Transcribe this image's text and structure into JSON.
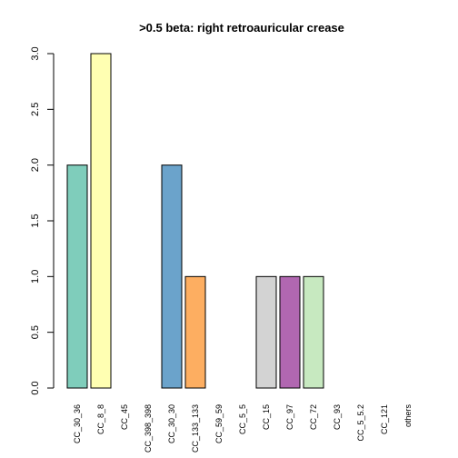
{
  "chart_data": {
    "type": "bar",
    "title": ">0.5 beta:  right retroauricular crease",
    "xlabel": "",
    "ylabel": "",
    "ylim": [
      0,
      3
    ],
    "yticks": [
      "0.0",
      "0.5",
      "1.0",
      "1.5",
      "2.0",
      "2.5",
      "3.0"
    ],
    "yticks_values": [
      0,
      0.5,
      1,
      1.5,
      2,
      2.5,
      3
    ],
    "grid": false,
    "legend": "none",
    "categories": [
      "CC_30_36",
      "CC_8_8",
      "CC_45",
      "CC_398_398",
      "CC_30_30",
      "CC_133_133",
      "CC_59_59",
      "CC_5_5",
      "CC_15",
      "CC_97",
      "CC_72",
      "CC_93",
      "CC_5_5.2",
      "CC_121",
      "others"
    ],
    "values": [
      2,
      3,
      0,
      0,
      2,
      1,
      0,
      0,
      1,
      1,
      1,
      0,
      0,
      0,
      0
    ],
    "colors": [
      "#7fcdbb",
      "#ffffb2",
      "#ffffff",
      "#ffffff",
      "#6ba3cb",
      "#fdae61",
      "#ffffff",
      "#ffffff",
      "#d3d3d3",
      "#b167b1",
      "#c7e9c0",
      "#ffffff",
      "#ffffff",
      "#ffffff",
      "#ffffff"
    ]
  }
}
